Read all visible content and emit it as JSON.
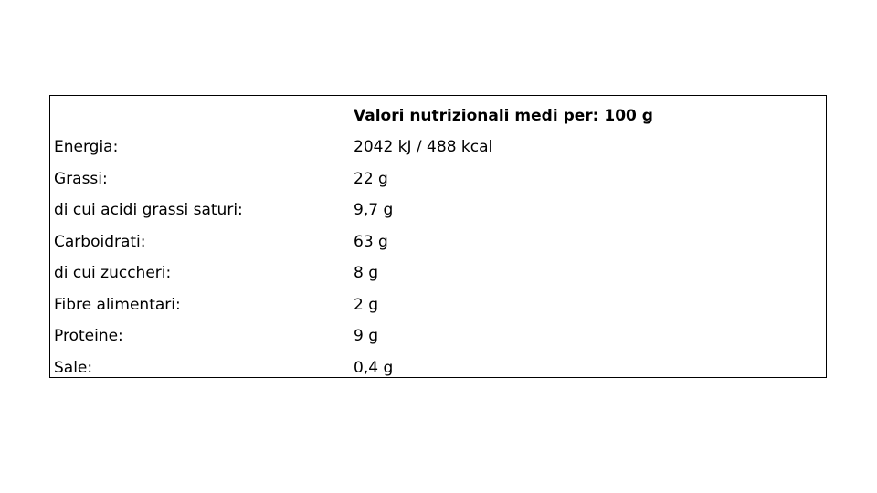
{
  "table": {
    "header": [
      "",
      "Valori nutrizionali medi per: 100 g"
    ],
    "rows": [
      [
        "Energia:",
        "2042 kJ / 488 kcal"
      ],
      [
        "Grassi:",
        "22 g"
      ],
      [
        "di cui acidi grassi saturi:",
        "9,7 g"
      ],
      [
        "Carboidrati:",
        "63 g"
      ],
      [
        "di cui zuccheri:",
        "8 g"
      ],
      [
        "Fibre alimentari:",
        "2 g"
      ],
      [
        "Proteine:",
        "9 g"
      ],
      [
        "Sale:",
        "0,4 g"
      ]
    ]
  }
}
